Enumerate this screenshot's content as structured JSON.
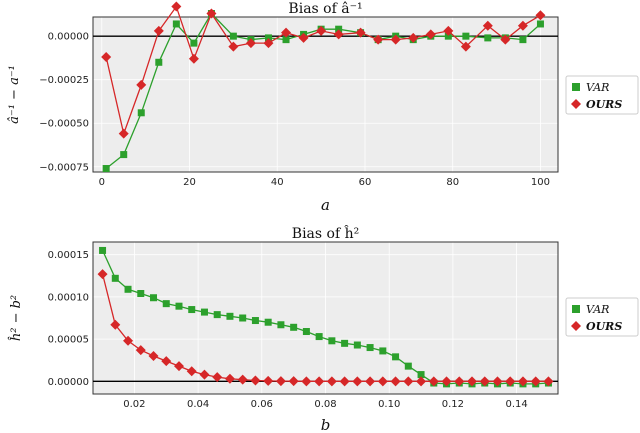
{
  "chart_data": [
    {
      "type": "line",
      "title": "Bias of â⁻¹",
      "xlabel": "a",
      "ylabel": "â⁻¹ − a⁻¹",
      "xlim": [
        -2,
        104
      ],
      "ylim": [
        -0.00078,
        0.00011
      ],
      "xticks": [
        0,
        20,
        40,
        60,
        80,
        100
      ],
      "yticks": [
        0.0,
        -0.00025,
        -0.0005,
        -0.00075
      ],
      "ytick_labels": [
        "0.00000",
        "−0.00025",
        "−0.00050",
        "−0.00075"
      ],
      "grid": true,
      "reference_line": 0,
      "legend": "right",
      "series": [
        {
          "name": "VAR",
          "color": "#2ca02c",
          "marker": "square",
          "x": [
            1,
            5,
            9,
            13,
            17,
            21,
            25,
            30,
            34,
            38,
            42,
            46,
            50,
            54,
            59,
            63,
            67,
            71,
            75,
            79,
            83,
            88,
            92,
            96,
            100
          ],
          "y": [
            -0.00076,
            -0.00068,
            -0.00044,
            -0.00015,
            7e-05,
            -4e-05,
            0.00013,
            0.0,
            -2e-05,
            -1e-05,
            -2e-05,
            1e-05,
            4e-05,
            4e-05,
            2e-05,
            -2e-05,
            0.0,
            -2e-05,
            0.0,
            0.0,
            0.0,
            -1e-05,
            -1e-05,
            -2e-05,
            7e-05
          ]
        },
        {
          "name": "OURS",
          "color": "#d62728",
          "marker": "diamond",
          "x": [
            1,
            5,
            9,
            13,
            17,
            21,
            25,
            30,
            34,
            38,
            42,
            46,
            50,
            54,
            59,
            63,
            67,
            71,
            75,
            79,
            83,
            88,
            92,
            96,
            100
          ],
          "y": [
            -0.00012,
            -0.00056,
            -0.00028,
            3e-05,
            0.00017,
            -0.00013,
            0.00013,
            -6e-05,
            -4e-05,
            -4e-05,
            2e-05,
            -1e-05,
            3e-05,
            1e-05,
            2e-05,
            -2e-05,
            -2e-05,
            -1e-05,
            1e-05,
            3e-05,
            -6e-05,
            6e-05,
            -2e-05,
            6e-05,
            0.00012
          ]
        }
      ]
    },
    {
      "type": "line",
      "title": "Bias of ĥ²",
      "xlabel": "b",
      "ylabel": "ĥ² − b²",
      "xlim": [
        0.007,
        0.153
      ],
      "ylim": [
        -1.5e-05,
        0.000165
      ],
      "xticks": [
        0.02,
        0.04,
        0.06,
        0.08,
        0.1,
        0.12,
        0.14
      ],
      "xtick_labels": [
        "0.02",
        "0.04",
        "0.06",
        "0.08",
        "0.10",
        "0.12",
        "0.14"
      ],
      "yticks": [
        0.0,
        5e-05,
        0.0001,
        0.00015
      ],
      "ytick_labels": [
        "0.00000",
        "0.00005",
        "0.00010",
        "0.00015"
      ],
      "grid": true,
      "reference_line": 0,
      "legend": "right",
      "series": [
        {
          "name": "VAR",
          "color": "#2ca02c",
          "marker": "square",
          "x": [
            0.01,
            0.014,
            0.018,
            0.022,
            0.026,
            0.03,
            0.034,
            0.038,
            0.042,
            0.046,
            0.05,
            0.054,
            0.058,
            0.062,
            0.066,
            0.07,
            0.074,
            0.078,
            0.082,
            0.086,
            0.09,
            0.094,
            0.098,
            0.102,
            0.106,
            0.11,
            0.114,
            0.118,
            0.122,
            0.126,
            0.13,
            0.134,
            0.138,
            0.142,
            0.146,
            0.15
          ],
          "y": [
            0.000155,
            0.000122,
            0.000109,
            0.000104,
            9.9e-05,
            9.2e-05,
            8.9e-05,
            8.5e-05,
            8.2e-05,
            7.9e-05,
            7.7e-05,
            7.5e-05,
            7.2e-05,
            7e-05,
            6.7e-05,
            6.4e-05,
            5.9e-05,
            5.3e-05,
            4.8e-05,
            4.5e-05,
            4.3e-05,
            4e-05,
            3.6e-05,
            2.9e-05,
            1.8e-05,
            8e-06,
            -2e-06,
            -3e-06,
            -2e-06,
            -3e-06,
            -2e-06,
            -3e-06,
            -2e-06,
            -3e-06,
            -3e-06,
            -2e-06
          ]
        },
        {
          "name": "OURS",
          "color": "#d62728",
          "marker": "diamond",
          "x": [
            0.01,
            0.014,
            0.018,
            0.022,
            0.026,
            0.03,
            0.034,
            0.038,
            0.042,
            0.046,
            0.05,
            0.054,
            0.058,
            0.062,
            0.066,
            0.07,
            0.074,
            0.078,
            0.082,
            0.086,
            0.09,
            0.094,
            0.098,
            0.102,
            0.106,
            0.11,
            0.114,
            0.118,
            0.122,
            0.126,
            0.13,
            0.134,
            0.138,
            0.142,
            0.146,
            0.15
          ],
          "y": [
            0.000127,
            6.7e-05,
            4.8e-05,
            3.7e-05,
            3e-05,
            2.4e-05,
            1.8e-05,
            1.2e-05,
            8e-06,
            5e-06,
            3e-06,
            2e-06,
            1e-06,
            5e-07,
            3e-07,
            2e-07,
            0.0,
            0.0,
            0.0,
            0.0,
            0.0,
            0.0,
            0.0,
            0.0,
            0.0,
            0.0,
            0.0,
            0.0,
            0.0,
            0.0,
            0.0,
            0.0,
            0.0,
            0.0,
            0.0,
            0.0
          ]
        }
      ]
    }
  ]
}
